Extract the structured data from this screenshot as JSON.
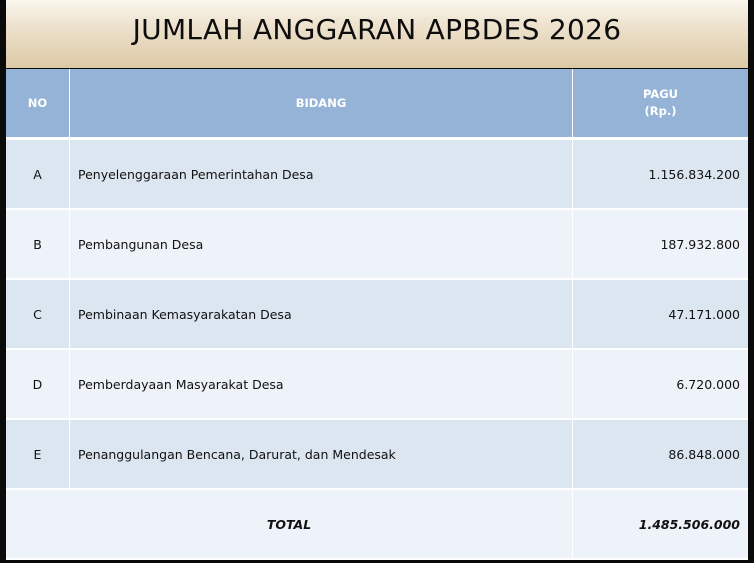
{
  "title": "JUMLAH ANGGARAN APBDES 2026",
  "table": {
    "headers": {
      "no": "NO",
      "bidang": "BIDANG",
      "pagu_line1": "PAGU",
      "pagu_line2": "(Rp.)"
    },
    "rows": [
      {
        "no": "A",
        "bidang": "Penyelenggaraan Pemerintahan Desa",
        "pagu": "1.156.834.200"
      },
      {
        "no": "B",
        "bidang": "Pembangunan Desa",
        "pagu": "187.932.800"
      },
      {
        "no": "C",
        "bidang": "Pembinaan Kemasyarakatan Desa",
        "pagu": "47.171.000"
      },
      {
        "no": "D",
        "bidang": "Pemberdayaan Masyarakat Desa",
        "pagu": "6.720.000"
      },
      {
        "no": "E",
        "bidang": "Penanggulangan Bencana, Darurat, dan Mendesak",
        "pagu": "86.848.000"
      }
    ],
    "total": {
      "label": "TOTAL",
      "pagu": "1.485.506.000"
    }
  },
  "colors": {
    "header_bg": "#95b3d7",
    "row_dark": "#dce6f1",
    "row_light": "#eef3f9",
    "banner_top": "#fbf7ef",
    "banner_bottom": "#dcc9a6"
  }
}
